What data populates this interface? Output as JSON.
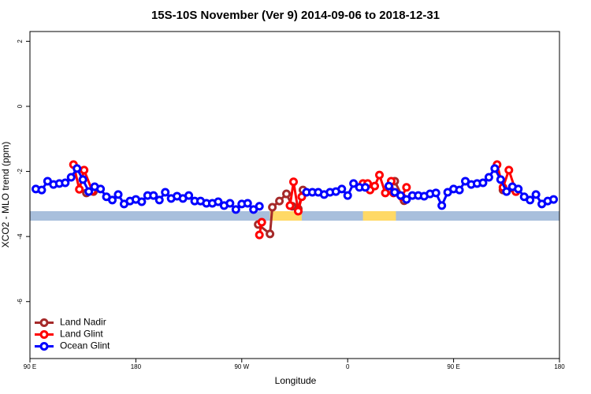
{
  "chart_data": {
    "type": "line",
    "title": "15S-10S November (Ver 9)   2014-09-06 to 2018-12-31",
    "xlabel": "Longitude",
    "ylabel": "XCO2 - MLO trend (ppm)",
    "xlim": [
      90,
      540
    ],
    "ylim": [
      -7.75,
      2.3
    ],
    "xticks": [
      {
        "value": 90,
        "label": "90 E"
      },
      180,
      {
        "value": 270,
        "label": "90 W"
      },
      {
        "value": 360,
        "label": "0"
      },
      {
        "value": 450,
        "label": "90 E"
      },
      {
        "value": 540,
        "label": "180"
      }
    ],
    "yticks": [
      2,
      0,
      -2,
      -4,
      -6
    ],
    "legend": "bottomleft",
    "land_spans": [
      [
        294,
        321
      ],
      [
        373,
        401
      ]
    ],
    "series": [
      {
        "name": "Land Nadir",
        "color": "#a52a2a",
        "x": [
          138,
          144,
          150,
          284,
          294,
          296,
          302,
          308,
          313,
          318,
          322,
          330,
          400,
          408,
          420,
          492,
          503
        ],
        "values": [
          -2.66,
          -2.62,
          null,
          -3.63,
          -3.92,
          -3.1,
          -2.91,
          -2.69,
          -3.07,
          -3.15,
          -2.57,
          null,
          -2.3,
          -2.9,
          null,
          -2.57,
          -2.62
        ]
      },
      {
        "name": "Land Glint",
        "color": "#ff0000",
        "x": [
          127,
          132,
          136,
          143,
          200,
          285,
          287,
          295,
          311,
          314,
          318,
          321,
          340,
          373,
          377,
          379,
          383,
          387,
          392,
          397,
          399,
          406,
          410,
          450,
          487,
          492,
          497,
          503
        ],
        "values": [
          -1.79,
          -2.55,
          -1.96,
          -2.6,
          null,
          -3.95,
          -3.56,
          null,
          -3.05,
          -2.32,
          -3.22,
          -2.78,
          null,
          -2.37,
          -2.37,
          -2.57,
          -2.45,
          -2.11,
          -2.66,
          -2.3,
          -2.66,
          -2.78,
          -2.49,
          null,
          -1.79,
          -2.49,
          -1.96,
          -2.62
        ]
      },
      {
        "name": "Ocean Glint",
        "color": "#0000ff",
        "x": [
          95,
          100,
          105,
          110,
          115,
          120,
          125,
          130,
          135,
          140,
          145,
          150,
          155,
          160,
          165,
          170,
          175,
          180,
          185,
          190,
          195,
          200,
          205,
          210,
          215,
          220,
          225,
          230,
          235,
          240,
          245,
          250,
          255,
          260,
          265,
          270,
          275,
          280,
          285,
          290,
          325,
          330,
          335,
          340,
          345,
          350,
          355,
          360,
          365,
          370,
          375,
          380,
          395,
          400,
          405,
          410,
          415,
          420,
          425,
          430,
          435,
          440,
          445,
          450,
          455,
          460,
          465,
          470,
          475,
          480,
          485,
          490,
          495,
          500,
          505,
          510,
          515,
          520,
          525,
          530,
          535
        ],
        "values": [
          -2.54,
          -2.57,
          -2.3,
          -2.4,
          -2.37,
          -2.35,
          -2.18,
          -1.91,
          -2.25,
          -2.62,
          -2.47,
          -2.54,
          -2.78,
          -2.88,
          -2.71,
          -3.0,
          -2.91,
          -2.86,
          -2.93,
          -2.74,
          -2.74,
          -2.88,
          -2.64,
          -2.83,
          -2.76,
          -2.83,
          -2.74,
          -2.91,
          -2.91,
          -2.98,
          -2.98,
          -2.93,
          -3.05,
          -2.98,
          -3.17,
          -3.0,
          -2.98,
          -3.17,
          -3.07,
          null,
          -2.64,
          -2.64,
          -2.64,
          -2.71,
          -2.64,
          -2.62,
          -2.54,
          -2.74,
          -2.37,
          -2.49,
          -2.49,
          null,
          -2.45,
          -2.64,
          -2.74,
          -2.86,
          -2.74,
          -2.74,
          -2.76,
          -2.69,
          -2.66,
          -3.05,
          -2.64,
          -2.54,
          -2.57,
          -2.3,
          -2.4,
          -2.37,
          -2.35,
          -2.18,
          -1.91,
          -2.25,
          -2.62,
          -2.47,
          -2.54,
          -2.78,
          -2.88,
          -2.71,
          -3.0,
          -2.91,
          -2.86
        ]
      }
    ]
  }
}
